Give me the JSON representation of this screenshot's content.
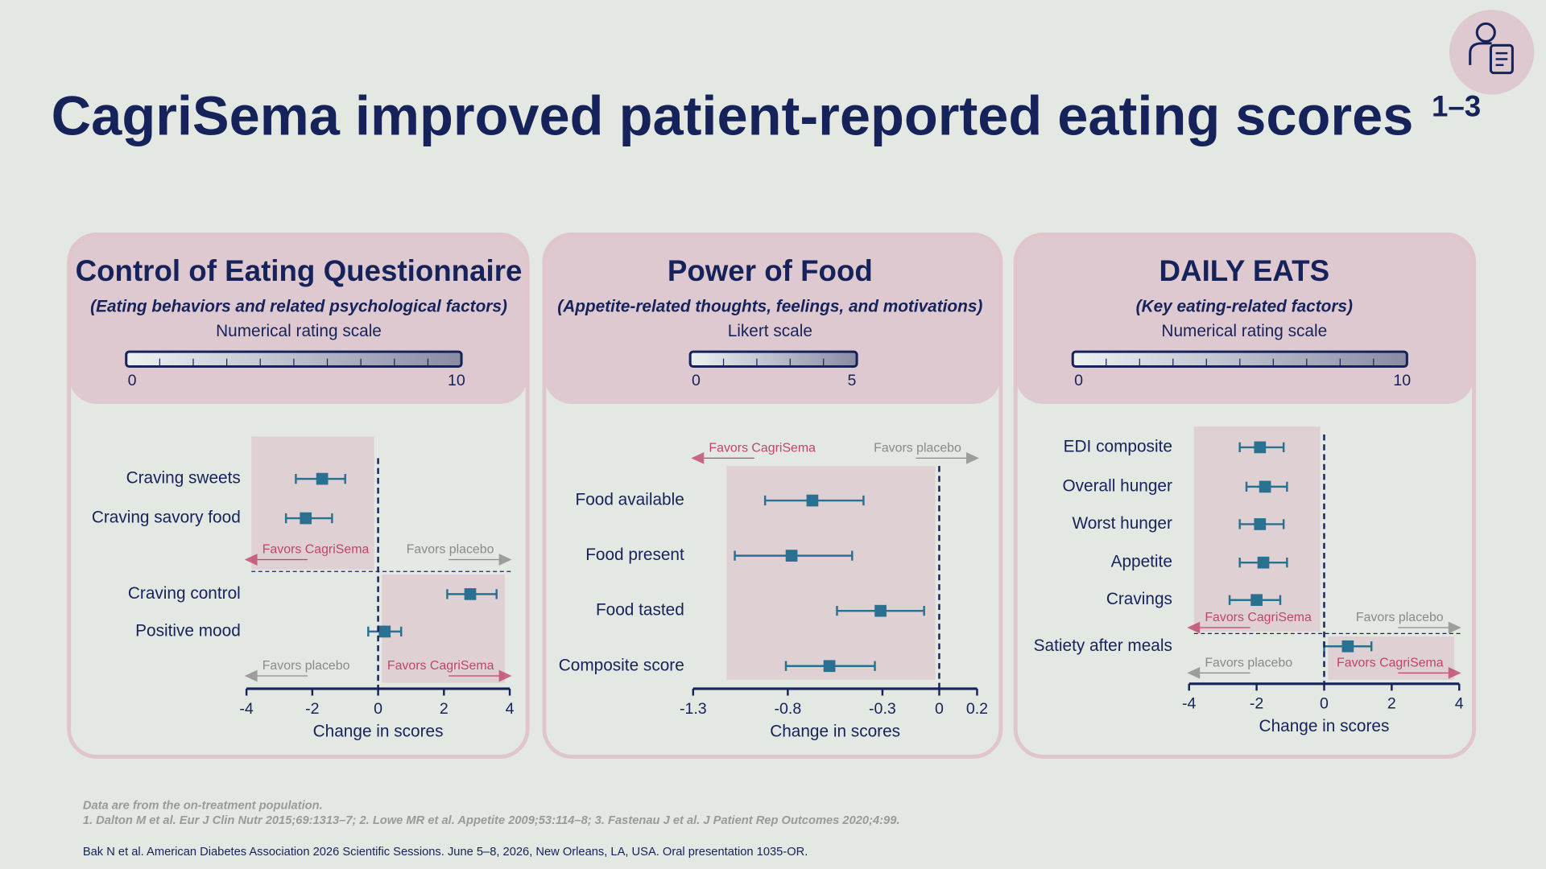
{
  "header": {
    "title": "CagriSema improved patient-reported eating scores",
    "superscript": "1–3"
  },
  "chart_data": [
    {
      "type": "forest",
      "title": "Control of Eating Questionnaire",
      "subtitle": "(Eating behaviors and related psychological factors)",
      "scale_label": "Numerical rating scale",
      "scale": [
        0,
        10
      ],
      "xlim": [
        -4,
        4
      ],
      "xticks": [
        -4,
        -2,
        0,
        2,
        4
      ],
      "xlabel": "Change in scores",
      "color": "#2a7090",
      "groups": [
        {
          "categories": [
            "Craving sweets",
            "Craving savory food"
          ],
          "values": [
            -1.7,
            -2.2
          ],
          "lower": [
            -2.5,
            -2.8
          ],
          "upper": [
            -1.0,
            -1.4
          ],
          "left_label": "Favors CagriSema",
          "left_color": "#c0456e",
          "right_label": "Favors placebo",
          "right_color": "#8a8a8a",
          "shade": "left"
        },
        {
          "categories": [
            "Craving control",
            "Positive mood"
          ],
          "values": [
            2.8,
            0.2
          ],
          "lower": [
            2.1,
            -0.3
          ],
          "upper": [
            3.6,
            0.7
          ],
          "left_label": "Favors placebo",
          "left_color": "#8a8a8a",
          "right_label": "Favors CagriSema",
          "right_color": "#c0456e",
          "shade": "right"
        }
      ]
    },
    {
      "type": "forest",
      "title": "Power of Food",
      "subtitle": "(Appetite-related thoughts, feelings, and motivations)",
      "scale_label": "Likert scale",
      "scale": [
        0,
        5
      ],
      "xlim": [
        -1.3,
        0.2
      ],
      "xticks": [
        -1.3,
        -0.8,
        -0.3,
        0,
        0.2
      ],
      "xlabel": "Change in scores",
      "color": "#2a7090",
      "groups": [
        {
          "categories": [
            "Food available",
            "Food present",
            "Food tasted",
            "Composite score"
          ],
          "values": [
            -0.67,
            -0.78,
            -0.31,
            -0.58
          ],
          "lower": [
            -0.92,
            -1.08,
            -0.54,
            -0.81
          ],
          "upper": [
            -0.4,
            -0.46,
            -0.08,
            -0.34
          ],
          "left_label": "Favors CagriSema",
          "left_color": "#c0456e",
          "right_label": "Favors placebo",
          "right_color": "#8a8a8a",
          "shade": "left"
        }
      ]
    },
    {
      "type": "forest",
      "title": "DAILY EATS",
      "subtitle": "(Key eating-related factors)",
      "scale_label": "Numerical rating scale",
      "scale": [
        0,
        10
      ],
      "xlim": [
        -4,
        4
      ],
      "xticks": [
        -4,
        -2,
        0,
        2,
        4
      ],
      "xlabel": "Change in scores",
      "color": "#2a7090",
      "groups": [
        {
          "categories": [
            "EDI composite",
            "Overall hunger",
            "Worst hunger",
            "Appetite",
            "Cravings"
          ],
          "values": [
            -1.9,
            -1.75,
            -1.9,
            -1.8,
            -2.0
          ],
          "lower": [
            -2.5,
            -2.3,
            -2.5,
            -2.5,
            -2.8
          ],
          "upper": [
            -1.2,
            -1.1,
            -1.2,
            -1.1,
            -1.3
          ],
          "left_label": "Favors CagriSema",
          "left_color": "#c0456e",
          "right_label": "Favors placebo",
          "right_color": "#8a8a8a",
          "shade": "left"
        },
        {
          "categories": [
            "Satiety after meals"
          ],
          "values": [
            0.7
          ],
          "lower": [
            0.0
          ],
          "upper": [
            1.4
          ],
          "left_label": "Favors placebo",
          "left_color": "#8a8a8a",
          "right_label": "Favors CagriSema",
          "right_color": "#c0456e",
          "shade": "right"
        }
      ]
    }
  ],
  "footnotes": [
    "Data are from the on-treatment population.",
    "1. Dalton M et al. Eur J Clin Nutr 2015;69:1313–7; 2. Lowe MR et al. Appetite 2009;53:114–8; 3. Fastenau J et al. J Patient Rep Outcomes 2020;4:99."
  ],
  "citation": "Bak N et al. American Diabetes Association 2026 Scientific Sessions. June 5–8, 2026, New Orleans, LA, USA. Oral presentation 1035-OR."
}
